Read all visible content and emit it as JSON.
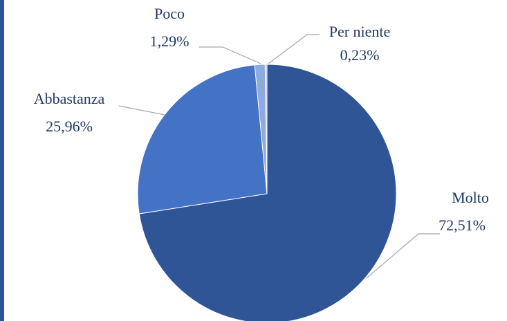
{
  "chart_data": {
    "type": "pie",
    "categories": [
      "Molto",
      "Abbastanza",
      "Poco",
      "Per niente"
    ],
    "values": [
      72.51,
      25.96,
      1.29,
      0.23
    ],
    "value_labels": [
      "72,51%",
      "25,96%",
      "1,29%",
      "0,23%"
    ],
    "colors": [
      "#2f5597",
      "#4472c4",
      "#8faadc",
      "#b4c7e7"
    ]
  }
}
